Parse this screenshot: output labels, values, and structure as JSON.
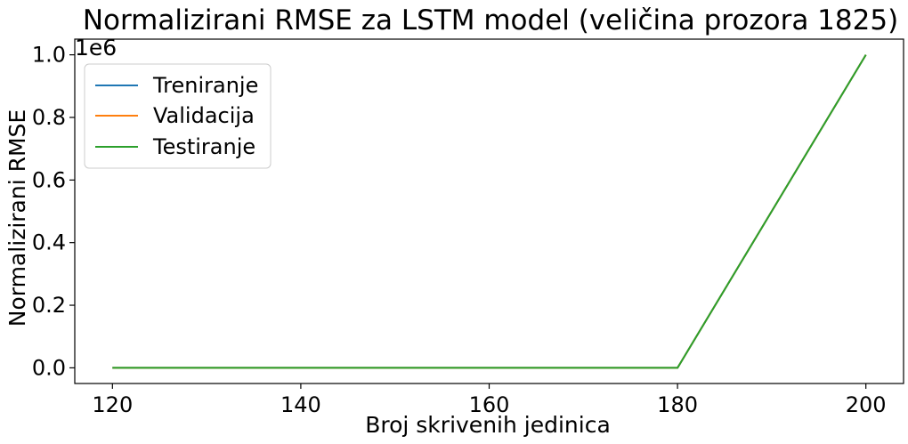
{
  "chart_data": {
    "type": "line",
    "title": "Normalizirani RMSE za LSTM model (veličina prozora 1825)",
    "xlabel": "Broj skrivenih jedinica",
    "ylabel": "Normalizirani RMSE",
    "y_offset_label": "1e6",
    "x": [
      120,
      180,
      200
    ],
    "xlim": [
      116,
      204
    ],
    "ylim": [
      -0.05,
      1.05
    ],
    "xticks": [
      120,
      140,
      160,
      180,
      200
    ],
    "xtick_labels": [
      "120",
      "140",
      "160",
      "180",
      "200"
    ],
    "yticks": [
      0.0,
      0.2,
      0.4,
      0.6,
      0.8,
      1.0
    ],
    "ytick_labels": [
      "0.0",
      "0.2",
      "0.4",
      "0.6",
      "0.8",
      "1.0"
    ],
    "grid": false,
    "legend_position": "upper-left",
    "series": [
      {
        "name": "Treniranje",
        "color": "#1f77b4",
        "values": [
          0.0,
          0.0,
          1.0
        ]
      },
      {
        "name": "Validacija",
        "color": "#ff7f0e",
        "values": [
          0.0,
          0.0,
          1.0
        ]
      },
      {
        "name": "Testiranje",
        "color": "#2ca02c",
        "values": [
          0.0,
          0.0,
          1.0
        ]
      }
    ]
  }
}
